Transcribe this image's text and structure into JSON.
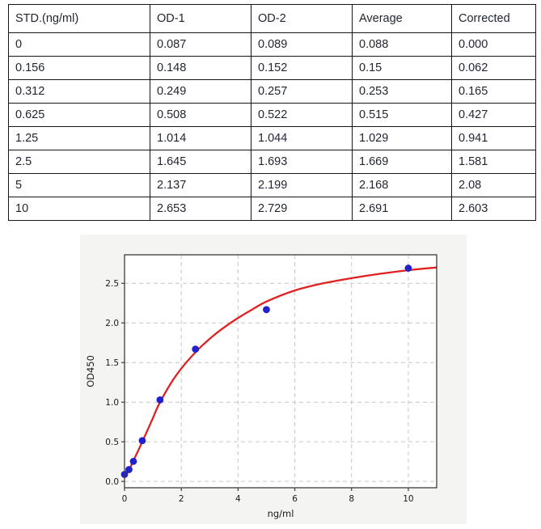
{
  "table": {
    "columns": [
      "STD.(ng/ml)",
      "OD-1",
      "OD-2",
      "Average",
      "Corrected"
    ],
    "rows": [
      [
        "0",
        "0.087",
        "0.089",
        "0.088",
        "0.000"
      ],
      [
        "0.156",
        "0.148",
        "0.152",
        "0.15",
        "0.062"
      ],
      [
        "0.312",
        "0.249",
        "0.257",
        "0.253",
        "0.165"
      ],
      [
        "0.625",
        "0.508",
        "0.522",
        "0.515",
        "0.427"
      ],
      [
        "1.25",
        "1.014",
        "1.044",
        "1.029",
        "0.941"
      ],
      [
        "2.5",
        "1.645",
        "1.693",
        "1.669",
        "1.581"
      ],
      [
        "5",
        "2.137",
        "2.199",
        "2.168",
        "2.08"
      ],
      [
        "10",
        "2.653",
        "2.729",
        "2.691",
        "2.603"
      ]
    ]
  },
  "chart_data": {
    "type": "scatter",
    "title": "",
    "xlabel": "ng/ml",
    "ylabel": "OD450",
    "xlim": [
      0,
      11
    ],
    "ylim": [
      -0.08,
      2.86
    ],
    "grid": true,
    "legend": "none",
    "xticks": [
      0,
      2,
      4,
      6,
      8,
      10
    ],
    "xtick_labels": [
      "0",
      "2",
      "4",
      "6",
      "8",
      "10"
    ],
    "yticks": [
      0.0,
      0.5,
      1.0,
      1.5,
      2.0,
      2.5
    ],
    "ytick_labels": [
      "0.0",
      "0.5",
      "1.0",
      "1.5",
      "2.0",
      "2.5"
    ],
    "points": {
      "name": "standards",
      "x": [
        0,
        0.156,
        0.312,
        0.625,
        1.25,
        2.5,
        5,
        10
      ],
      "y": [
        0.088,
        0.15,
        0.253,
        0.515,
        1.029,
        1.669,
        2.168,
        2.691
      ]
    },
    "fit_curve": {
      "name": "4PL-fit",
      "x": [
        0,
        0.156,
        0.312,
        0.625,
        1.0,
        1.25,
        1.8,
        2.5,
        3.2,
        3.9,
        4.5,
        5,
        6,
        7,
        8,
        9,
        10,
        11
      ],
      "y": [
        0.07,
        0.145,
        0.26,
        0.5,
        0.8,
        1.0,
        1.33,
        1.63,
        1.86,
        2.04,
        2.17,
        2.27,
        2.41,
        2.5,
        2.565,
        2.62,
        2.665,
        2.7
      ]
    },
    "colors": {
      "points": "#2121cc",
      "curve": "#e02120",
      "grid": "#c6c6c6",
      "spine": "#3d3d3d",
      "panel_bg": "#f4f4f3",
      "plot_bg": "#ffffff",
      "text": "#1a1a1a"
    }
  }
}
